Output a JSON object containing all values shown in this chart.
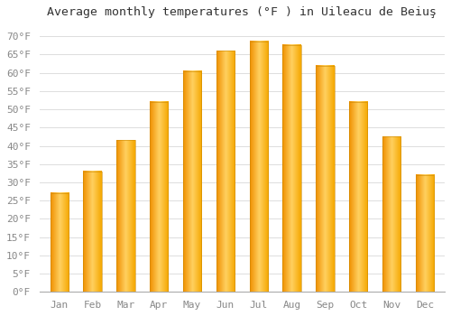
{
  "title": "Average monthly temperatures (°F ) in Uileacu de Beiuş",
  "months": [
    "Jan",
    "Feb",
    "Mar",
    "Apr",
    "May",
    "Jun",
    "Jul",
    "Aug",
    "Sep",
    "Oct",
    "Nov",
    "Dec"
  ],
  "values": [
    27,
    33,
    41.5,
    52,
    60.5,
    66,
    68.5,
    67.5,
    62,
    52,
    42.5,
    32
  ],
  "bar_color_main": "#FFBB33",
  "bar_color_left": "#F09000",
  "bar_color_right": "#FFD060",
  "background_color": "#FFFFFF",
  "grid_color": "#DDDDDD",
  "title_fontsize": 9.5,
  "tick_fontsize": 8,
  "tick_color": "#888888",
  "ylim": [
    0,
    73
  ],
  "yticks": [
    0,
    5,
    10,
    15,
    20,
    25,
    30,
    35,
    40,
    45,
    50,
    55,
    60,
    65,
    70
  ],
  "ytick_labels": [
    "0°F",
    "5°F",
    "10°F",
    "15°F",
    "20°F",
    "25°F",
    "30°F",
    "35°F",
    "40°F",
    "45°F",
    "50°F",
    "55°F",
    "60°F",
    "65°F",
    "70°F"
  ]
}
